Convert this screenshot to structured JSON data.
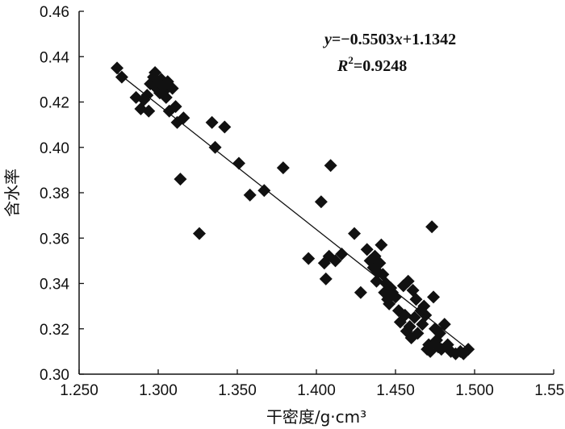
{
  "chart_data": {
    "type": "scatter",
    "xlabel": "干密度/g·cm³",
    "ylabel": "含水率",
    "xlim": [
      1.25,
      1.55
    ],
    "ylim": [
      0.3,
      0.46
    ],
    "x_ticks": [
      "1.250",
      "1.300",
      "1.350",
      "1.400",
      "1.450",
      "1.500",
      "1.550"
    ],
    "y_ticks": [
      "0.30",
      "0.32",
      "0.34",
      "0.36",
      "0.38",
      "0.40",
      "0.42",
      "0.44",
      "0.46"
    ],
    "grid": false,
    "trendline": {
      "slope": -0.5503,
      "intercept": 1.1342,
      "x_range": [
        1.273,
        1.497
      ]
    },
    "annotations": {
      "equation_prefix": "y",
      "equation_body": "=−0.5503",
      "equation_x": "x",
      "equation_tail": "+1.1342",
      "r2_letter": "R",
      "r2_sup": "2",
      "r2_value": "=0.9248"
    },
    "marker_color": "#111111",
    "points": [
      [
        1.274,
        0.435
      ],
      [
        1.277,
        0.431
      ],
      [
        1.286,
        0.422
      ],
      [
        1.289,
        0.417
      ],
      [
        1.291,
        0.421
      ],
      [
        1.293,
        0.423
      ],
      [
        1.294,
        0.416
      ],
      [
        1.295,
        0.428
      ],
      [
        1.297,
        0.431
      ],
      [
        1.298,
        0.433
      ],
      [
        1.299,
        0.426
      ],
      [
        1.3,
        0.429
      ],
      [
        1.301,
        0.424
      ],
      [
        1.302,
        0.43
      ],
      [
        1.303,
        0.427
      ],
      [
        1.304,
        0.425
      ],
      [
        1.305,
        0.422
      ],
      [
        1.306,
        0.429
      ],
      [
        1.307,
        0.416
      ],
      [
        1.309,
        0.426
      ],
      [
        1.311,
        0.418
      ],
      [
        1.312,
        0.411
      ],
      [
        1.314,
        0.386
      ],
      [
        1.316,
        0.413
      ],
      [
        1.326,
        0.362
      ],
      [
        1.334,
        0.411
      ],
      [
        1.336,
        0.4
      ],
      [
        1.342,
        0.409
      ],
      [
        1.351,
        0.393
      ],
      [
        1.358,
        0.379
      ],
      [
        1.367,
        0.381
      ],
      [
        1.379,
        0.391
      ],
      [
        1.395,
        0.351
      ],
      [
        1.403,
        0.376
      ],
      [
        1.405,
        0.349
      ],
      [
        1.406,
        0.342
      ],
      [
        1.408,
        0.352
      ],
      [
        1.409,
        0.392
      ],
      [
        1.412,
        0.35
      ],
      [
        1.416,
        0.353
      ],
      [
        1.424,
        0.362
      ],
      [
        1.428,
        0.336
      ],
      [
        1.432,
        0.355
      ],
      [
        1.434,
        0.35
      ],
      [
        1.436,
        0.347
      ],
      [
        1.437,
        0.352
      ],
      [
        1.438,
        0.341
      ],
      [
        1.439,
        0.345
      ],
      [
        1.44,
        0.349
      ],
      [
        1.441,
        0.357
      ],
      [
        1.442,
        0.344
      ],
      [
        1.443,
        0.336
      ],
      [
        1.444,
        0.34
      ],
      [
        1.445,
        0.333
      ],
      [
        1.446,
        0.331
      ],
      [
        1.447,
        0.338
      ],
      [
        1.448,
        0.336
      ],
      [
        1.45,
        0.334
      ],
      [
        1.452,
        0.328
      ],
      [
        1.453,
        0.323
      ],
      [
        1.455,
        0.339
      ],
      [
        1.456,
        0.326
      ],
      [
        1.457,
        0.319
      ],
      [
        1.458,
        0.341
      ],
      [
        1.459,
        0.321
      ],
      [
        1.46,
        0.316
      ],
      [
        1.461,
        0.337
      ],
      [
        1.462,
        0.325
      ],
      [
        1.463,
        0.333
      ],
      [
        1.464,
        0.318
      ],
      [
        1.466,
        0.328
      ],
      [
        1.467,
        0.322
      ],
      [
        1.468,
        0.33
      ],
      [
        1.469,
        0.326
      ],
      [
        1.47,
        0.311
      ],
      [
        1.471,
        0.313
      ],
      [
        1.472,
        0.31
      ],
      [
        1.473,
        0.365
      ],
      [
        1.474,
        0.334
      ],
      [
        1.475,
        0.32
      ],
      [
        1.476,
        0.315
      ],
      [
        1.477,
        0.312
      ],
      [
        1.478,
        0.318
      ],
      [
        1.479,
        0.311
      ],
      [
        1.481,
        0.322
      ],
      [
        1.483,
        0.313
      ],
      [
        1.485,
        0.31
      ],
      [
        1.488,
        0.309
      ],
      [
        1.491,
        0.31
      ],
      [
        1.493,
        0.309
      ],
      [
        1.496,
        0.311
      ]
    ]
  }
}
